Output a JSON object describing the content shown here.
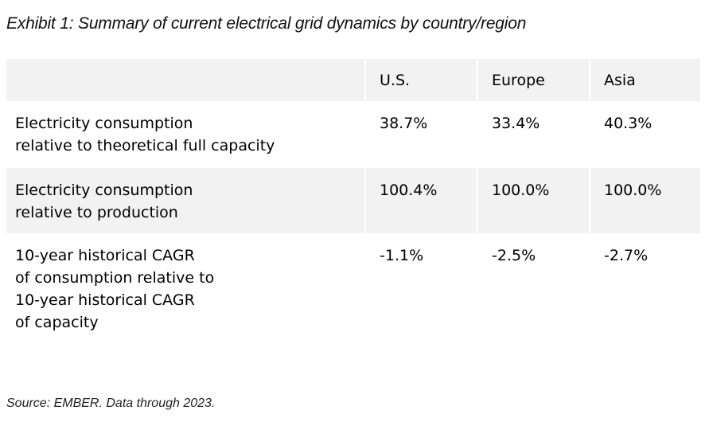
{
  "title": "Exhibit 1: Summary of current electrical grid dynamics by country/region",
  "table": {
    "columns": [
      "",
      "U.S.",
      "Europe",
      "Asia"
    ],
    "rows": [
      {
        "label": [
          "Electricity consumption",
          "relative to theoretical full capacity"
        ],
        "values": [
          "38.7%",
          "33.4%",
          "40.3%"
        ]
      },
      {
        "label": [
          "Electricity consumption",
          "relative to production"
        ],
        "values": [
          "100.4%",
          "100.0%",
          "100.0%"
        ]
      },
      {
        "label": [
          "10-year historical CAGR",
          "of consumption relative to",
          "10-year historical CAGR",
          "of capacity"
        ],
        "values": [
          "-1.1%",
          "-2.5%",
          "-2.7%"
        ]
      }
    ]
  },
  "source": "Source: EMBER. Data through 2023.",
  "colors": {
    "shaded_row": "#f2f2f2",
    "background": "#ffffff"
  }
}
